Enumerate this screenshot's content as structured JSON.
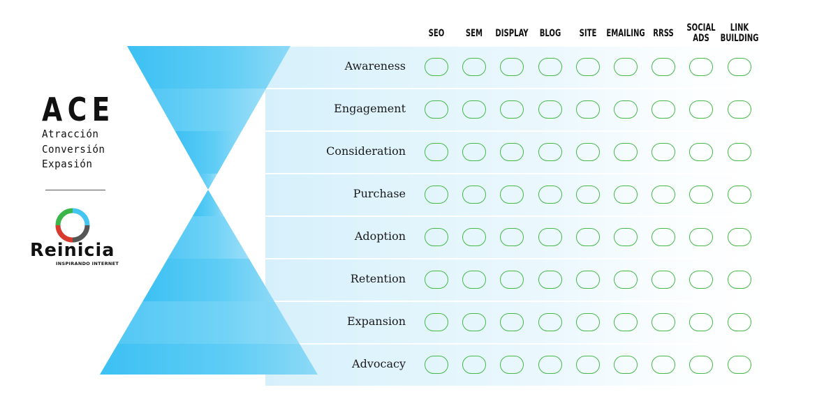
{
  "ace": {
    "title": "ACE",
    "lines": [
      "Atracción",
      "Conversión",
      "Expasión"
    ]
  },
  "brand": {
    "name": "Reinicia",
    "tagline": "INSPIRANDO INTERNET"
  },
  "channels": [
    {
      "lines": [
        "SEO"
      ]
    },
    {
      "lines": [
        "SEM"
      ]
    },
    {
      "lines": [
        "DISPLAY"
      ]
    },
    {
      "lines": [
        "BLOG"
      ]
    },
    {
      "lines": [
        "SITE"
      ]
    },
    {
      "lines": [
        "EMAILING"
      ]
    },
    {
      "lines": [
        "RRSS"
      ]
    },
    {
      "lines": [
        "SOCIAL",
        "ADS"
      ]
    },
    {
      "lines": [
        "LINK",
        "BUILDING"
      ]
    }
  ],
  "stages": [
    {
      "label": "Awareness"
    },
    {
      "label": "Engagement"
    },
    {
      "label": "Consideration"
    },
    {
      "label": "Purchase"
    },
    {
      "label": "Adoption"
    },
    {
      "label": "Retention"
    },
    {
      "label": "Expansion"
    },
    {
      "label": "Advocacy"
    }
  ],
  "colors": {
    "funnel_primary": "#4dc6f4",
    "funnel_light": "#8ed8f6",
    "band": "#e3f5fc",
    "checkbox_border": "#46b949",
    "logo_green": "#3bb54a",
    "logo_red": "#d83a2e",
    "logo_cyan": "#44c4f0",
    "logo_grey": "#555555"
  }
}
